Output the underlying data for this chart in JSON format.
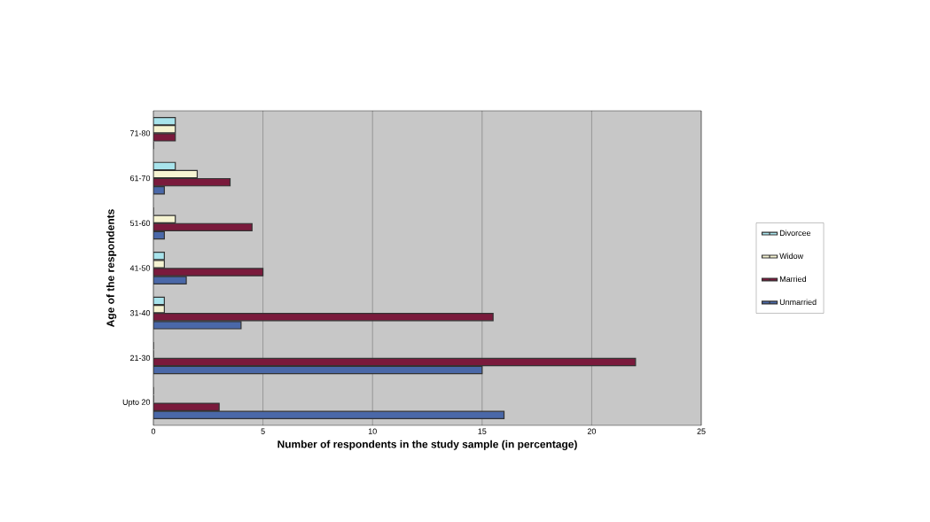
{
  "chart_data": {
    "type": "bar",
    "orientation": "horizontal",
    "xlabel": "Number of respondents in the study sample (in percentage)",
    "ylabel": "Age of the respondents",
    "categories": [
      "71-80",
      "61-70",
      "51-60",
      "41-50",
      "31-40",
      "21-30",
      "Upto 20"
    ],
    "series": [
      {
        "name": "Divorcee",
        "color": "#a8e4ec",
        "values": [
          1,
          1,
          0,
          0.5,
          0.5,
          0,
          0
        ]
      },
      {
        "name": "Widow",
        "color": "#f6f4d2",
        "values": [
          1,
          2,
          1,
          0.5,
          0.5,
          0,
          0
        ]
      },
      {
        "name": "Married",
        "color": "#7a1a3c",
        "values": [
          1,
          3.5,
          4.5,
          5,
          15.5,
          22,
          3
        ]
      },
      {
        "name": "Unmarried",
        "color": "#4a68a8",
        "values": [
          0,
          0.5,
          0.5,
          1.5,
          4,
          15,
          16
        ]
      }
    ],
    "xlim": [
      0,
      25
    ],
    "xticks": [
      0,
      5,
      10,
      15,
      20,
      25
    ],
    "grid": "x",
    "legend": "right"
  }
}
